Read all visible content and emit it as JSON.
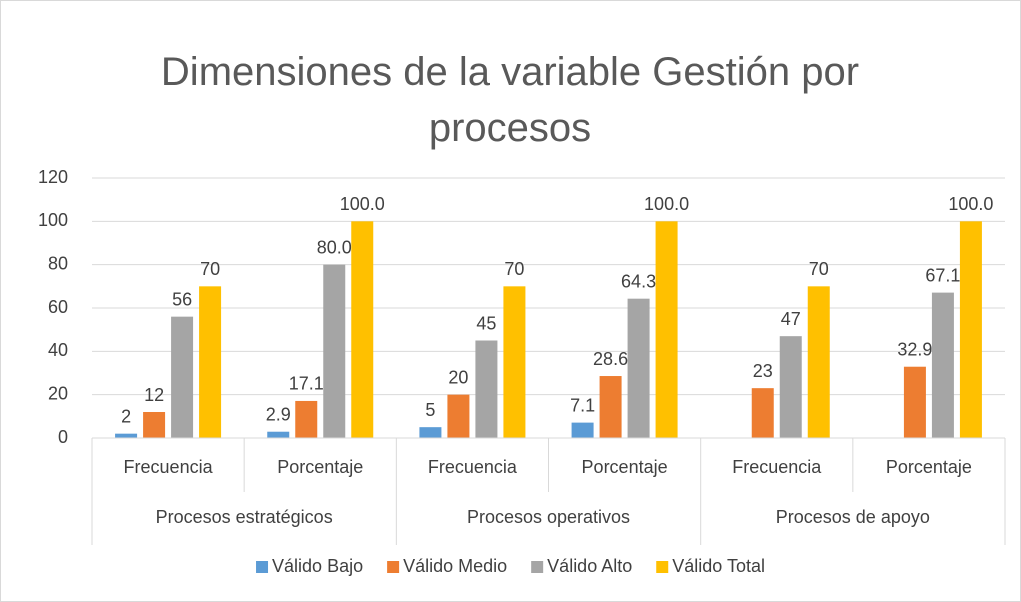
{
  "chart_data": {
    "type": "bar",
    "title": "Dimensiones de la variable Gestión por procesos",
    "categories": [
      "Frecuencia",
      "Porcentaje",
      "Frecuencia",
      "Porcentaje",
      "Frecuencia",
      "Porcentaje"
    ],
    "category_groups": [
      "Procesos estratégicos",
      "Procesos operativos",
      "Procesos de apoyo"
    ],
    "series": [
      {
        "name": "Válido Bajo",
        "color": "#5b9bd5",
        "values": [
          2,
          2.9,
          5,
          7.1,
          null,
          null
        ],
        "value_labels": [
          "2",
          "2.9",
          "5",
          "7.1",
          null,
          null
        ]
      },
      {
        "name": "Válido Medio",
        "color": "#ed7d31",
        "values": [
          12,
          17.1,
          20,
          28.6,
          23,
          32.9
        ],
        "value_labels": [
          "12",
          "17.1",
          "20",
          "28.6",
          "23",
          "32.9"
        ]
      },
      {
        "name": "Válido Alto",
        "color": "#a5a5a5",
        "values": [
          56,
          80,
          45,
          64.3,
          47,
          67.1
        ],
        "value_labels": [
          "56",
          "80.0",
          "45",
          "64.3",
          "47",
          "67.1"
        ]
      },
      {
        "name": "Válido Total",
        "color": "#ffc000",
        "values": [
          70,
          100,
          70,
          100,
          70,
          100
        ],
        "value_labels": [
          "70",
          "100.0",
          "70",
          "100.0",
          "70",
          "100.0"
        ]
      }
    ],
    "ylim": [
      0,
      120
    ],
    "yticks": [
      0,
      20,
      40,
      60,
      80,
      100,
      120
    ],
    "grid": true,
    "legend": "bottom"
  }
}
